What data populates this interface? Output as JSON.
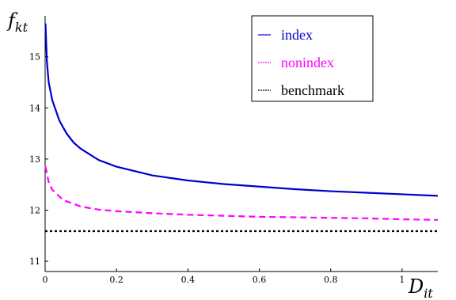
{
  "chart_data": {
    "type": "line",
    "title": "",
    "xlabel": "D_it",
    "ylabel": "f_kt",
    "xlabel_main": "D",
    "xlabel_sub": "it",
    "ylabel_main": "f",
    "ylabel_sub": "kt",
    "xlim": [
      0,
      1.1
    ],
    "ylim": [
      10.8,
      15.8
    ],
    "x_ticks": [
      "0",
      "0.2",
      "0.4",
      "0.6",
      "0.8",
      "1"
    ],
    "y_ticks": [
      "11",
      "12",
      "13",
      "14",
      "15"
    ],
    "grid": false,
    "legend_position": "top-right",
    "series": [
      {
        "name": "index",
        "color": "#0000cc",
        "style": "solid",
        "x": [
          0.001,
          0.005,
          0.01,
          0.02,
          0.04,
          0.06,
          0.08,
          0.1,
          0.15,
          0.2,
          0.3,
          0.4,
          0.5,
          0.6,
          0.7,
          0.8,
          0.9,
          1.0,
          1.1
        ],
        "y": [
          15.65,
          14.9,
          14.5,
          14.15,
          13.75,
          13.5,
          13.32,
          13.2,
          12.98,
          12.85,
          12.68,
          12.58,
          12.51,
          12.46,
          12.41,
          12.37,
          12.34,
          12.31,
          12.28
        ]
      },
      {
        "name": "nonindex",
        "color": "#ff00ff",
        "style": "dashed",
        "x": [
          0.001,
          0.01,
          0.02,
          0.05,
          0.1,
          0.15,
          0.2,
          0.3,
          0.4,
          0.5,
          0.6,
          0.7,
          0.8,
          0.9,
          1.0,
          1.1
        ],
        "y": [
          12.85,
          12.55,
          12.4,
          12.2,
          12.07,
          12.01,
          11.98,
          11.94,
          11.91,
          11.89,
          11.87,
          11.86,
          11.85,
          11.84,
          11.82,
          11.81
        ]
      },
      {
        "name": "benchmark",
        "color": "#000000",
        "style": "dotted",
        "x": [
          0,
          1.1
        ],
        "y": [
          11.59,
          11.59
        ]
      }
    ]
  }
}
